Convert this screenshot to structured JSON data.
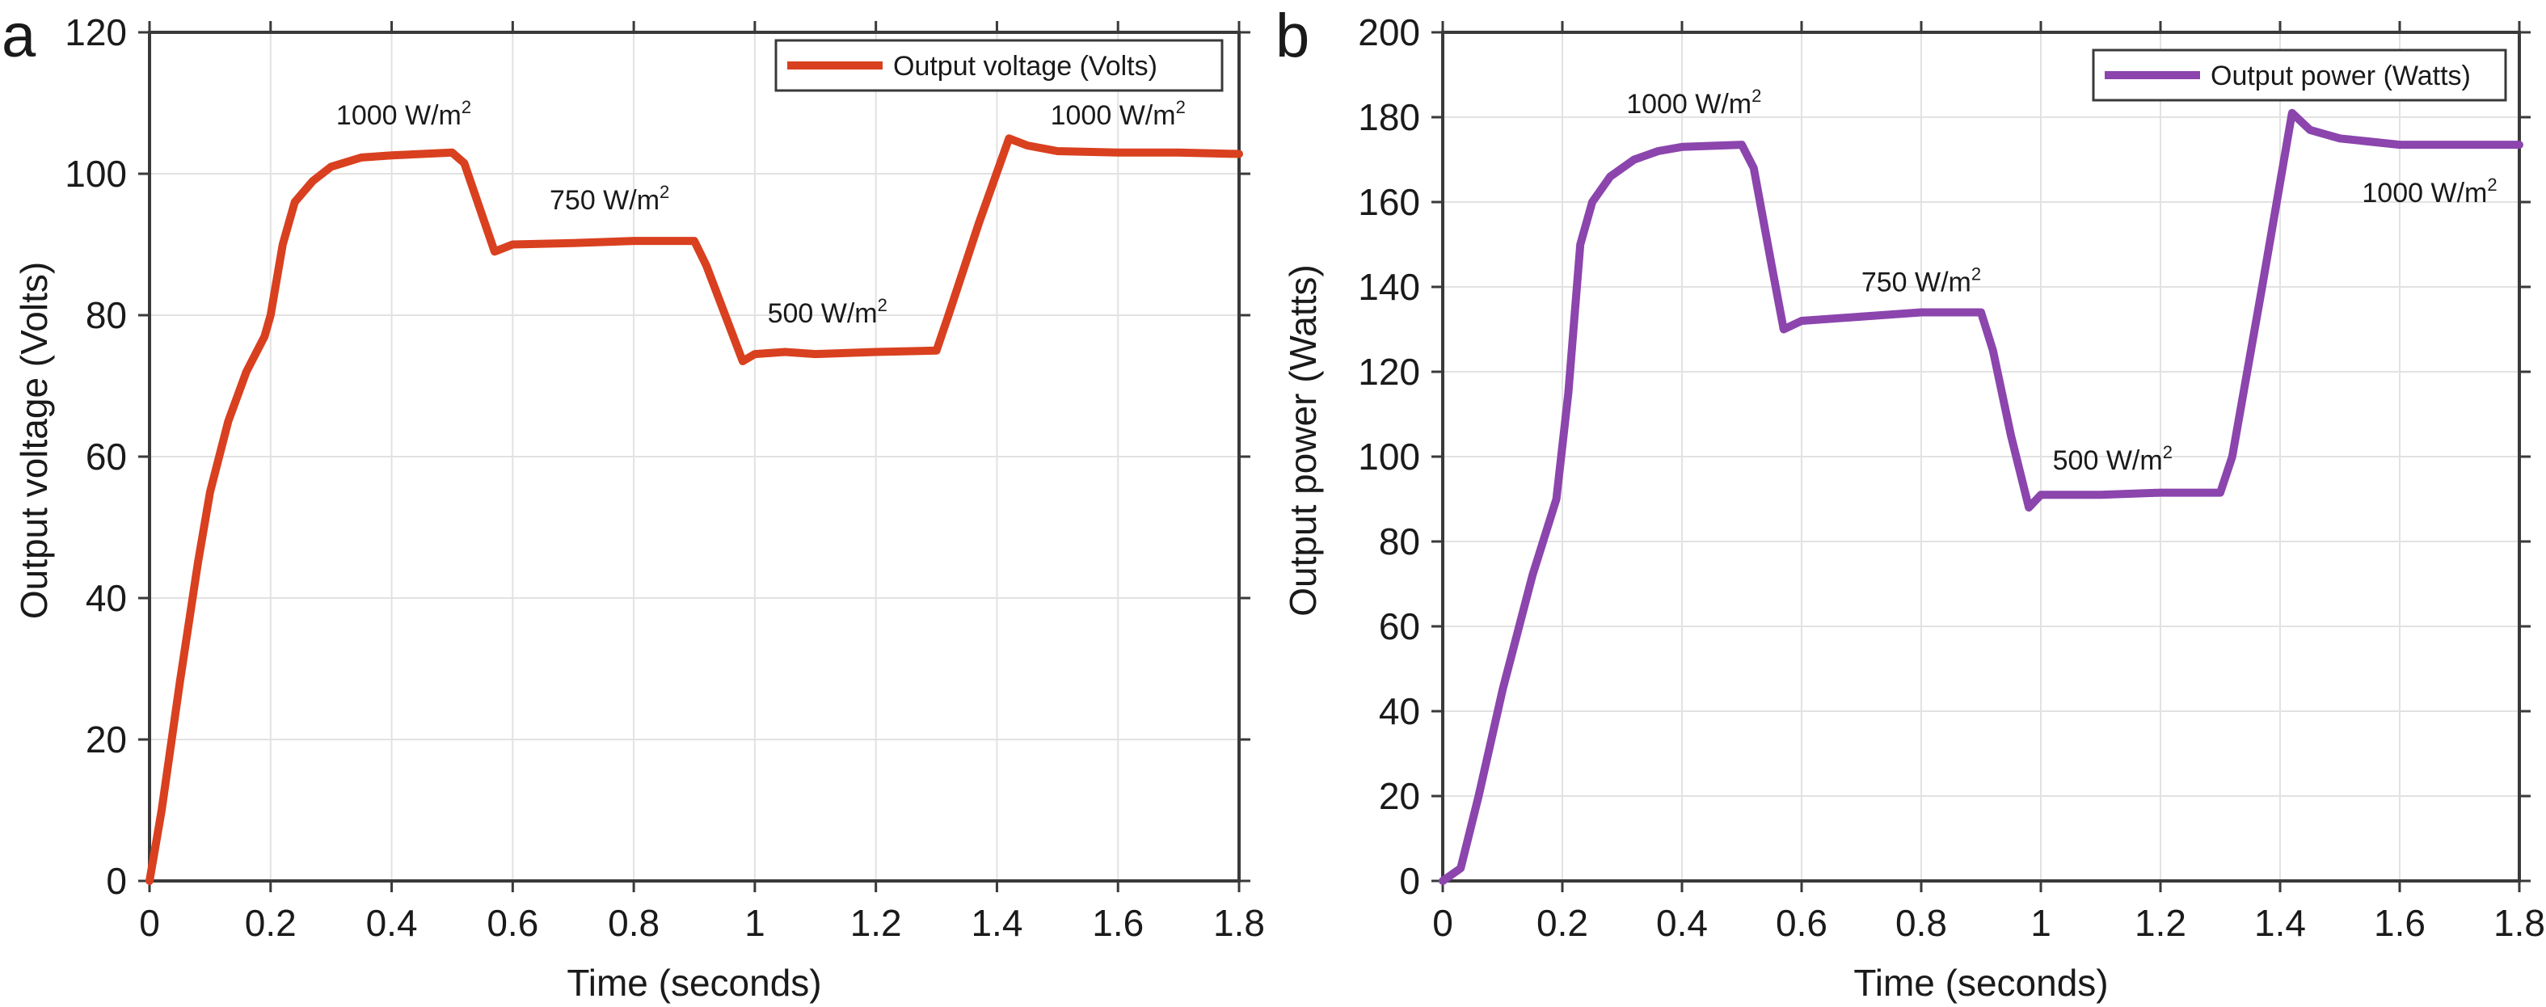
{
  "chart_data": [
    {
      "panel": "a",
      "type": "line",
      "title": "",
      "xlabel": "Time (seconds)",
      "ylabel": "Output voltage (Volts)",
      "xlim": [
        0,
        1.8
      ],
      "ylim": [
        0,
        120
      ],
      "xticks": [
        0,
        0.2,
        0.4,
        0.6,
        0.8,
        1,
        1.2,
        1.4,
        1.6,
        1.8
      ],
      "xtick_labels": [
        "0",
        "0.2",
        "0.4",
        "0.6",
        "0.8",
        "1",
        "1.2",
        "1.4",
        "1.6",
        "1.8"
      ],
      "yticks": [
        0,
        20,
        40,
        60,
        80,
        100,
        120
      ],
      "ytick_labels": [
        "0",
        "20",
        "40",
        "60",
        "80",
        "100",
        "120"
      ],
      "grid": true,
      "legend": {
        "position": "top-right",
        "entries": [
          "Output voltage (Volts)"
        ]
      },
      "series": [
        {
          "name": "Output voltage (Volts)",
          "color": "#D9401F",
          "x": [
            0,
            0.02,
            0.05,
            0.08,
            0.1,
            0.13,
            0.16,
            0.19,
            0.2,
            0.22,
            0.24,
            0.27,
            0.3,
            0.35,
            0.4,
            0.45,
            0.5,
            0.52,
            0.55,
            0.57,
            0.6,
            0.7,
            0.8,
            0.9,
            0.92,
            0.96,
            0.98,
            1.0,
            1.05,
            1.1,
            1.2,
            1.3,
            1.32,
            1.37,
            1.42,
            1.45,
            1.5,
            1.6,
            1.7,
            1.8
          ],
          "y": [
            0,
            10,
            28,
            45,
            55,
            65,
            72,
            77,
            80,
            90,
            96,
            99,
            101,
            102.3,
            102.6,
            102.8,
            103,
            101.5,
            94,
            89,
            90,
            90.2,
            90.5,
            90.5,
            87,
            78,
            73.5,
            74.5,
            74.8,
            74.5,
            74.8,
            75,
            80,
            93,
            105,
            104,
            103.2,
            103,
            103,
            102.8
          ]
        }
      ],
      "annotations": [
        {
          "text": "1000 W/m",
          "sup": "2",
          "x": 0.42,
          "y": 107
        },
        {
          "text": "750 W/m",
          "sup": "2",
          "x": 0.76,
          "y": 95
        },
        {
          "text": "500 W/m",
          "sup": "2",
          "x": 1.12,
          "y": 79
        },
        {
          "text": "1000 W/m",
          "sup": "2",
          "x": 1.6,
          "y": 107
        }
      ]
    },
    {
      "panel": "b",
      "type": "line",
      "title": "",
      "xlabel": "Time (seconds)",
      "ylabel": "Output power (Watts)",
      "xlim": [
        0,
        1.8
      ],
      "ylim": [
        0,
        200
      ],
      "xticks": [
        0,
        0.2,
        0.4,
        0.6,
        0.8,
        1,
        1.2,
        1.4,
        1.6,
        1.8
      ],
      "xtick_labels": [
        "0",
        "0.2",
        "0.4",
        "0.6",
        "0.8",
        "1",
        "1.2",
        "1.4",
        "1.6",
        "1.8"
      ],
      "yticks": [
        0,
        20,
        40,
        60,
        80,
        100,
        120,
        140,
        160,
        180,
        200
      ],
      "ytick_labels": [
        "0",
        "20",
        "40",
        "60",
        "80",
        "100",
        "120",
        "140",
        "160",
        "180",
        "200"
      ],
      "grid": true,
      "legend": {
        "position": "top-right",
        "entries": [
          "Output power (Watts)"
        ]
      },
      "series": [
        {
          "name": "Output power (Watts)",
          "color": "#8B45AD",
          "x": [
            0,
            0.03,
            0.06,
            0.1,
            0.15,
            0.19,
            0.21,
            0.23,
            0.25,
            0.28,
            0.32,
            0.36,
            0.4,
            0.5,
            0.52,
            0.55,
            0.57,
            0.6,
            0.7,
            0.8,
            0.9,
            0.92,
            0.95,
            0.98,
            1.0,
            1.1,
            1.2,
            1.3,
            1.32,
            1.37,
            1.42,
            1.45,
            1.5,
            1.6,
            1.8
          ],
          "y": [
            0,
            3,
            20,
            45,
            72,
            90,
            115,
            150,
            160,
            166,
            170,
            172,
            173,
            173.5,
            168,
            145,
            130,
            132,
            133,
            134,
            134,
            125,
            105,
            88,
            91,
            91,
            91.5,
            91.5,
            100,
            140,
            181,
            177,
            175,
            173.5,
            173.5
          ]
        }
      ],
      "annotations": [
        {
          "text": "1000 W/m",
          "sup": "2",
          "x": 0.42,
          "y": 181
        },
        {
          "text": "750 W/m",
          "sup": "2",
          "x": 0.8,
          "y": 139
        },
        {
          "text": "500 W/m",
          "sup": "2",
          "x": 1.12,
          "y": 97
        },
        {
          "text": "1000 W/m",
          "sup": "2",
          "x": 1.65,
          "y": 160
        }
      ]
    }
  ]
}
